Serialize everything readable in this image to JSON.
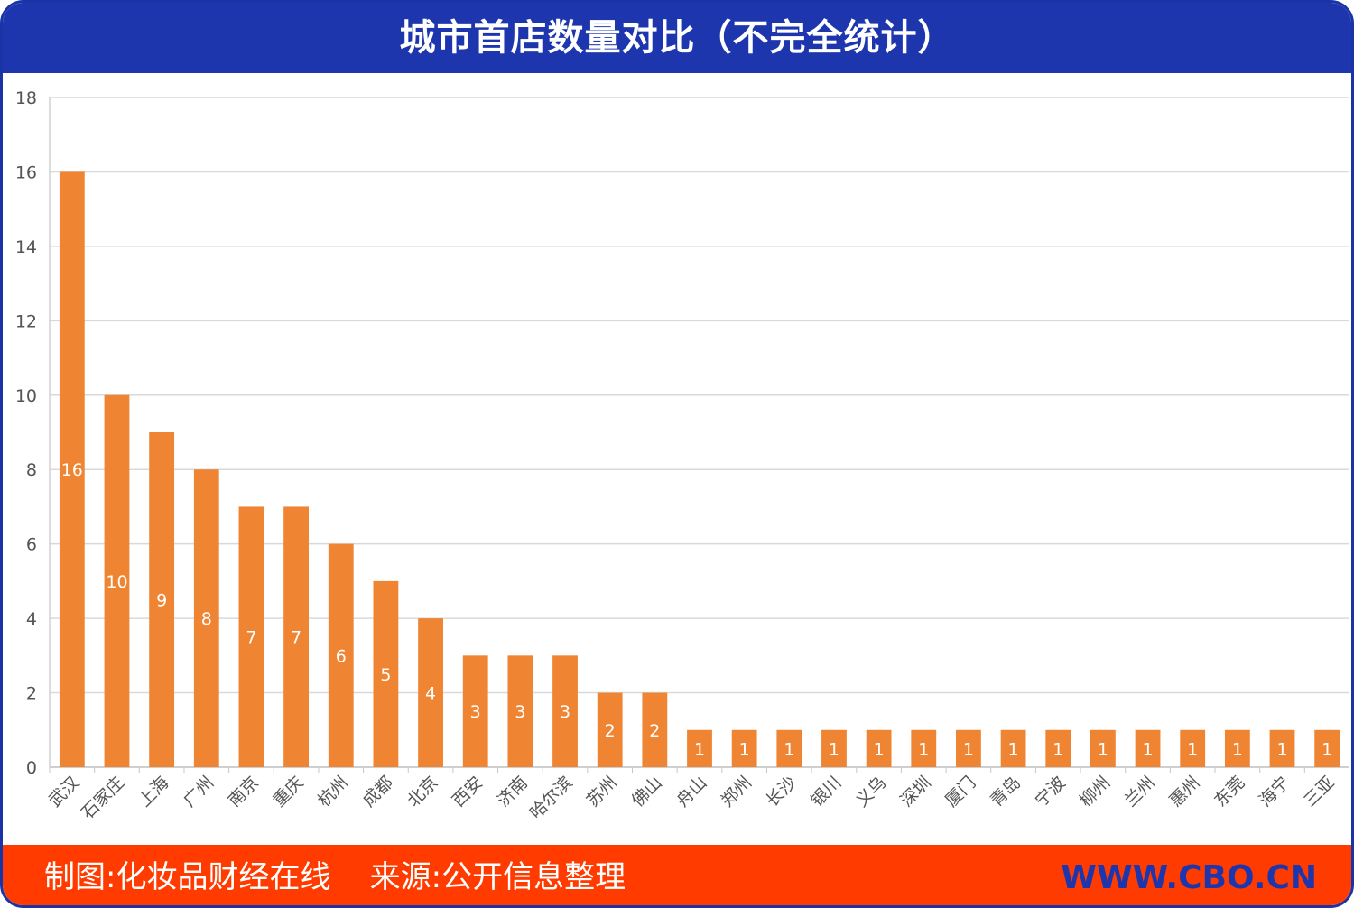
{
  "header": {
    "title": "城市首店数量对比（不完全统计）"
  },
  "footer": {
    "credit": "制图:化妆品财经在线    来源:公开信息整理",
    "site": "WWW.CBO.CN"
  },
  "colors": {
    "header_bg": "#1d36ad",
    "footer_bg": "#ff3b00",
    "bar": "#ef8432",
    "grid": "#d9d9d9"
  },
  "chart_data": {
    "type": "bar",
    "title": "城市首店数量对比（不完全统计）",
    "xlabel": "",
    "ylabel": "",
    "ylim": [
      0,
      18
    ],
    "yticks": [
      0,
      2,
      4,
      6,
      8,
      10,
      12,
      14,
      16,
      18
    ],
    "grid": true,
    "legend": "none",
    "categories": [
      "武汉",
      "石家庄",
      "上海",
      "广州",
      "南京",
      "重庆",
      "杭州",
      "成都",
      "北京",
      "西安",
      "济南",
      "哈尔滨",
      "苏州",
      "佛山",
      "舟山",
      "郑州",
      "长沙",
      "银川",
      "义乌",
      "深圳",
      "厦门",
      "青岛",
      "宁波",
      "柳州",
      "兰州",
      "惠州",
      "东莞",
      "海宁",
      "三亚"
    ],
    "values": [
      16,
      10,
      9,
      8,
      7,
      7,
      6,
      5,
      4,
      3,
      3,
      3,
      2,
      2,
      1,
      1,
      1,
      1,
      1,
      1,
      1,
      1,
      1,
      1,
      1,
      1,
      1,
      1,
      1
    ]
  }
}
